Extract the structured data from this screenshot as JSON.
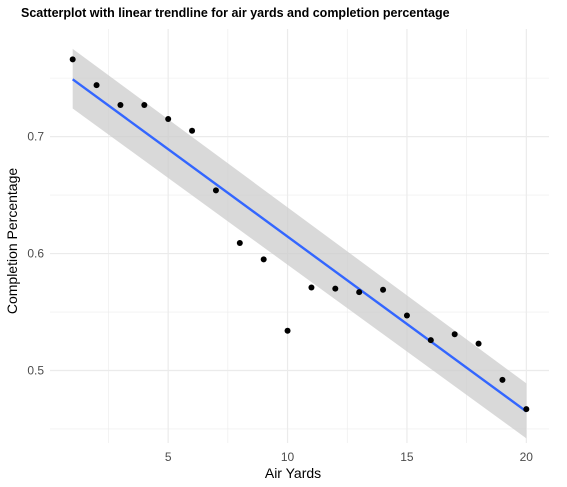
{
  "chart_data": {
    "type": "scatter",
    "title": "Scatterplot with linear trendline for air yards and completion percentage",
    "xlabel": "Air Yards",
    "ylabel": "Completion Percentage",
    "xlim": [
      0.05,
      20.95
    ],
    "ylim": [
      0.438,
      0.792
    ],
    "xticks": [
      5,
      10,
      15,
      20
    ],
    "xtick_labels": [
      "5",
      "10",
      "15",
      "20"
    ],
    "yticks": [
      0.5,
      0.6,
      0.7
    ],
    "ytick_labels": [
      "0.5",
      "0.6",
      "0.7"
    ],
    "grid": true,
    "legend": "none",
    "points": [
      {
        "x": 1,
        "y": 0.766
      },
      {
        "x": 2,
        "y": 0.744
      },
      {
        "x": 3,
        "y": 0.727
      },
      {
        "x": 4,
        "y": 0.727
      },
      {
        "x": 5,
        "y": 0.715
      },
      {
        "x": 6,
        "y": 0.705
      },
      {
        "x": 7,
        "y": 0.654
      },
      {
        "x": 8,
        "y": 0.609
      },
      {
        "x": 9,
        "y": 0.595
      },
      {
        "x": 10,
        "y": 0.534
      },
      {
        "x": 11,
        "y": 0.571
      },
      {
        "x": 12,
        "y": 0.57
      },
      {
        "x": 13,
        "y": 0.567
      },
      {
        "x": 14,
        "y": 0.569
      },
      {
        "x": 15,
        "y": 0.547
      },
      {
        "x": 16,
        "y": 0.526
      },
      {
        "x": 17,
        "y": 0.531
      },
      {
        "x": 18,
        "y": 0.523
      },
      {
        "x": 19,
        "y": 0.492
      },
      {
        "x": 20,
        "y": 0.467
      }
    ],
    "trendline": {
      "method": "linear",
      "x": [
        1,
        20
      ],
      "y": [
        0.749,
        0.465
      ],
      "ci_lower": [
        0.724,
        0.442
      ],
      "ci_upper": [
        0.775,
        0.489
      ]
    },
    "colors": {
      "points": "#000000",
      "trendline": "#3366ff",
      "ci_band": "#cccccc",
      "grid": "#ebebeb"
    }
  }
}
